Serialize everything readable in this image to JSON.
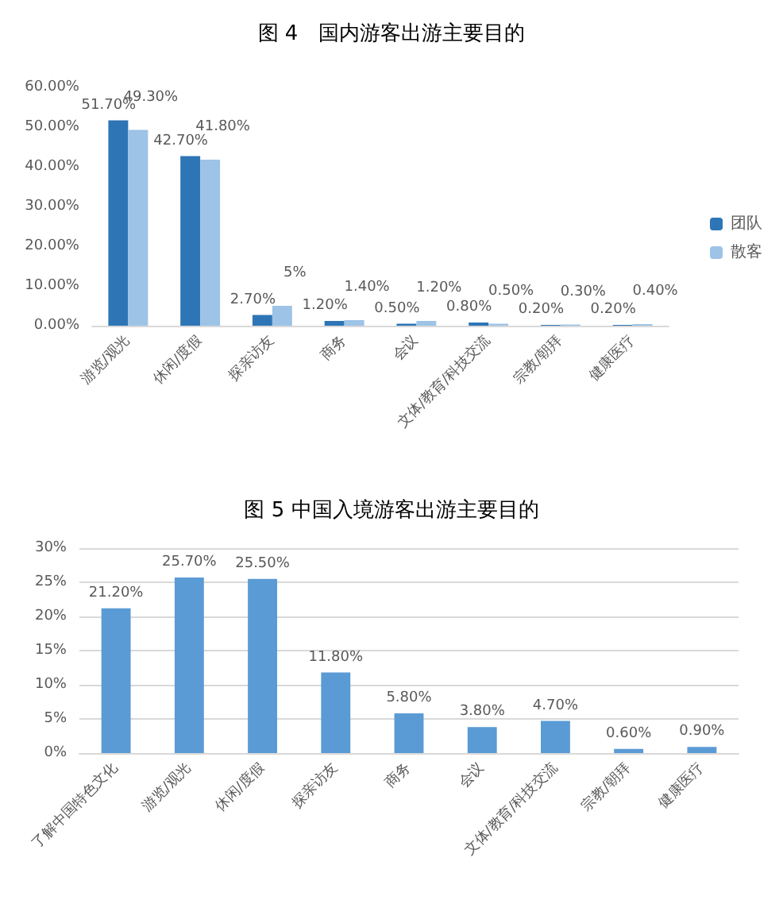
{
  "chart_data": [
    {
      "type": "bar",
      "title": "图 4　国内游客出游主要目的",
      "categories": [
        "游览/观光",
        "休闲/度假",
        "探亲访友",
        "商务",
        "会议",
        "文体/教育/科技交流",
        "宗教/朝拜",
        "健康医疗"
      ],
      "series": [
        {
          "name": "团队",
          "color": "#2e75b6",
          "values": [
            51.7,
            42.7,
            2.7,
            1.2,
            0.5,
            0.8,
            0.2,
            0.2
          ],
          "value_labels": [
            "51.70%",
            "42.70%",
            "2.70%",
            "1.20%",
            "0.50%",
            "0.80%",
            "0.20%",
            "0.20%"
          ]
        },
        {
          "name": "散客",
          "color": "#9dc3e6",
          "values": [
            49.3,
            41.8,
            5,
            1.4,
            1.2,
            0.5,
            0.3,
            0.4
          ],
          "value_labels": [
            "49.30%",
            "41.80%",
            "5%",
            "1.40%",
            "1.20%",
            "0.50%",
            "0.30%",
            "0.40%"
          ]
        }
      ],
      "ylim": [
        0,
        60
      ],
      "yticks": [
        {
          "value": 0,
          "label": "0.00%"
        },
        {
          "value": 10,
          "label": "10.00%"
        },
        {
          "value": 20,
          "label": "20.00%"
        },
        {
          "value": 30,
          "label": "30.00%"
        },
        {
          "value": 40,
          "label": "40.00%"
        },
        {
          "value": 50,
          "label": "50.00%"
        },
        {
          "value": 60,
          "label": "60.00%"
        }
      ],
      "grid": false,
      "legend": "right"
    },
    {
      "type": "bar",
      "title": "图 5 中国入境游客出游主要目的",
      "categories": [
        "了解中国特色文化",
        "游览/观光",
        "休闲/度假",
        "探亲访友",
        "商务",
        "会议",
        "文体/教育/科技交流",
        "宗教/朝拜",
        "健康医疗"
      ],
      "series": [
        {
          "color": "#5b9bd5",
          "values": [
            21.2,
            25.7,
            25.5,
            11.8,
            5.8,
            3.8,
            4.7,
            0.6,
            0.9
          ],
          "value_labels": [
            "21.20%",
            "25.70%",
            "25.50%",
            "11.80%",
            "5.80%",
            "3.80%",
            "4.70%",
            "0.60%",
            "0.90%"
          ]
        }
      ],
      "ylim": [
        0,
        30
      ],
      "yticks": [
        {
          "value": 0,
          "label": "0%"
        },
        {
          "value": 5,
          "label": "5%"
        },
        {
          "value": 10,
          "label": "10%"
        },
        {
          "value": 15,
          "label": "15%"
        },
        {
          "value": 20,
          "label": "20%"
        },
        {
          "value": 25,
          "label": "25%"
        },
        {
          "value": 30,
          "label": "30%"
        }
      ],
      "grid": "y",
      "legend": false
    }
  ]
}
